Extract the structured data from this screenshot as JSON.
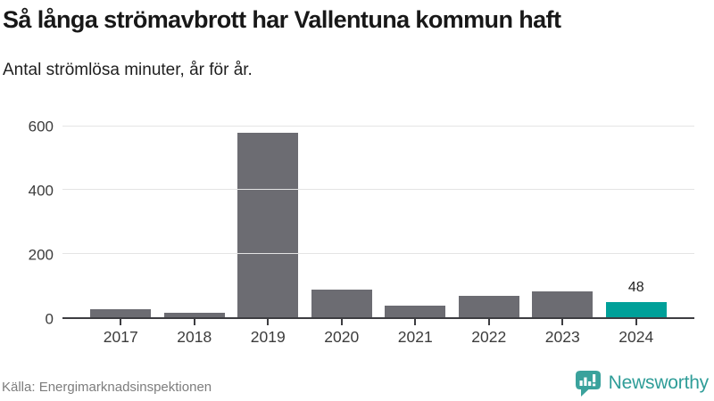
{
  "header": {
    "title": "Så långa strömavbrott har Vallentuna kommun haft",
    "subtitle": "Antal strömlösa minuter, år för år."
  },
  "chart_data": {
    "type": "bar",
    "title": "Så långa strömavbrott har Vallentuna kommun haft",
    "subtitle": "Antal strömlösa minuter, år för år.",
    "categories": [
      "2017",
      "2018",
      "2019",
      "2020",
      "2021",
      "2022",
      "2023",
      "2024"
    ],
    "values": [
      24,
      15,
      580,
      87,
      36,
      67,
      82,
      48
    ],
    "ylabel": "Antal strömlösa minuter",
    "xlabel": "",
    "ylim": [
      0,
      600
    ],
    "yticks": [
      0,
      200,
      400,
      600
    ],
    "grid": true,
    "legend": "none",
    "bar_color": "#6c6c72",
    "highlight_color": "#00a099",
    "highlight_category": "2024",
    "annotations": [
      {
        "category": "2024",
        "text": "48"
      }
    ]
  },
  "footer": {
    "source": "Källa: Energimarknadsinspektionen",
    "brand": "Newsworthy",
    "brand_color": "#2f9d98",
    "logo_color": "#3aa29c"
  }
}
